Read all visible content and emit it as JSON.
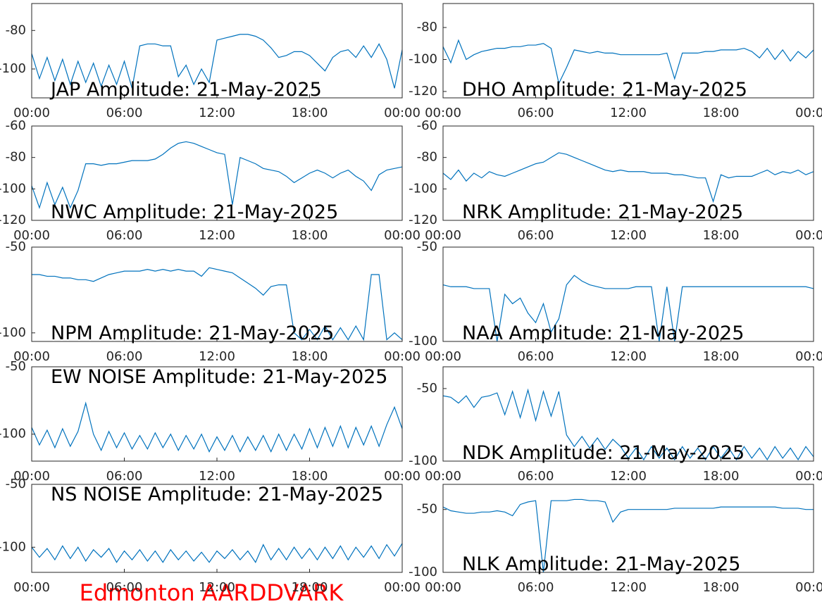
{
  "chart_data": [
    {
      "type": "line",
      "title": "JAP Amplitude: 21-May-2025",
      "color": "#0072bd",
      "x": [
        0,
        0.5,
        1,
        1.5,
        2,
        2.5,
        3,
        3.5,
        4,
        4.5,
        5,
        5.5,
        6,
        6.5,
        7,
        7.5,
        8,
        8.5,
        9,
        9.5,
        10,
        10.5,
        11,
        11.5,
        12,
        12.5,
        13,
        13.5,
        14,
        14.5,
        15,
        15.5,
        16,
        16.5,
        17,
        17.5,
        18,
        18.5,
        19,
        19.5,
        20,
        20.5,
        21,
        21.5,
        22,
        22.5,
        23,
        23.5,
        24
      ],
      "values": [
        -92,
        -105,
        -94,
        -106,
        -95,
        -108,
        -96,
        -107,
        -97,
        -109,
        -98,
        -108,
        -96,
        -110,
        -88,
        -87,
        -87,
        -88,
        -88,
        -104,
        -98,
        -108,
        -100,
        -107,
        -85,
        -84,
        -83,
        -82,
        -82,
        -83,
        -85,
        -89,
        -94,
        -93,
        -91,
        -91,
        -93,
        -97,
        -101,
        -94,
        -91,
        -90,
        -94,
        -88,
        -94,
        -87,
        -95,
        -110,
        -90
      ],
      "xlim": [
        0,
        24
      ],
      "xticks": [
        {
          "value": 0,
          "label": "00:00"
        },
        {
          "value": 6,
          "label": "06:00"
        },
        {
          "value": 12,
          "label": "12:00"
        },
        {
          "value": 18,
          "label": "18:00"
        },
        {
          "value": 24,
          "label": "00:00"
        }
      ],
      "ylim": [
        -115,
        -66
      ],
      "yticks": [
        -100,
        -80
      ]
    },
    {
      "type": "line",
      "title": "DHO Amplitude: 21-May-2025",
      "color": "#0072bd",
      "x": [
        0,
        0.5,
        1,
        1.5,
        2,
        2.5,
        3,
        3.5,
        4,
        4.5,
        5,
        5.5,
        6,
        6.5,
        7,
        7.5,
        8,
        8.5,
        9,
        9.5,
        10,
        10.5,
        11,
        11.5,
        12,
        12.5,
        13,
        13.5,
        14,
        14.5,
        15,
        15.5,
        16,
        16.5,
        17,
        17.5,
        18,
        18.5,
        19,
        19.5,
        20,
        20.5,
        21,
        21.5,
        22,
        22.5,
        23,
        23.5,
        24
      ],
      "values": [
        -92,
        -102,
        -88,
        -100,
        -97,
        -95,
        -94,
        -93,
        -93,
        -92,
        -92,
        -91,
        -91,
        -90,
        -93,
        -115,
        -105,
        -94,
        -95,
        -96,
        -95,
        -96,
        -96,
        -97,
        -97,
        -97,
        -97,
        -97,
        -97,
        -96,
        -112,
        -96,
        -96,
        -96,
        -95,
        -95,
        -94,
        -94,
        -94,
        -93,
        -95,
        -99,
        -93,
        -100,
        -94,
        -101,
        -95,
        -99,
        -94
      ],
      "xlim": [
        0,
        24
      ],
      "xticks": [
        {
          "value": 0,
          "label": "00:00"
        },
        {
          "value": 6,
          "label": "06:00"
        },
        {
          "value": 12,
          "label": "12:00"
        },
        {
          "value": 18,
          "label": "18:00"
        },
        {
          "value": 24,
          "label": "00:00"
        }
      ],
      "ylim": [
        -124,
        -65
      ],
      "yticks": [
        -120,
        -100,
        -80
      ]
    },
    {
      "type": "line",
      "title": "NWC Amplitude: 21-May-2025",
      "color": "#0072bd",
      "x": [
        0,
        0.5,
        1,
        1.5,
        2,
        2.5,
        3,
        3.5,
        4,
        4.5,
        5,
        5.5,
        6,
        6.5,
        7,
        7.5,
        8,
        8.5,
        9,
        9.5,
        10,
        10.5,
        11,
        11.5,
        12,
        12.5,
        13,
        13.5,
        14,
        14.5,
        15,
        15.5,
        16,
        16.5,
        17,
        17.5,
        18,
        18.5,
        19,
        19.5,
        20,
        20.5,
        21,
        21.5,
        22,
        22.5,
        23,
        23.5,
        24
      ],
      "values": [
        -98,
        -112,
        -96,
        -110,
        -99,
        -112,
        -101,
        -84,
        -84,
        -85,
        -84,
        -84,
        -83,
        -82,
        -82,
        -82,
        -81,
        -78,
        -74,
        -71,
        -70,
        -71,
        -73,
        -75,
        -77,
        -78,
        -110,
        -80,
        -82,
        -84,
        -87,
        -88,
        -89,
        -92,
        -96,
        -93,
        -90,
        -88,
        -90,
        -93,
        -90,
        -88,
        -92,
        -95,
        -101,
        -91,
        -88,
        -87,
        -86
      ],
      "xlim": [
        0,
        24
      ],
      "xticks": [
        {
          "value": 0,
          "label": "00:00"
        },
        {
          "value": 6,
          "label": "06:00"
        },
        {
          "value": 12,
          "label": "12:00"
        },
        {
          "value": 18,
          "label": "18:00"
        },
        {
          "value": 24,
          "label": "00:00"
        }
      ],
      "ylim": [
        -120,
        -60
      ],
      "yticks": [
        -120,
        -100,
        -80,
        -60
      ]
    },
    {
      "type": "line",
      "title": "NRK Amplitude: 21-May-2025",
      "color": "#0072bd",
      "x": [
        0,
        0.5,
        1,
        1.5,
        2,
        2.5,
        3,
        3.5,
        4,
        4.5,
        5,
        5.5,
        6,
        6.5,
        7,
        7.5,
        8,
        8.5,
        9,
        9.5,
        10,
        10.5,
        11,
        11.5,
        12,
        12.5,
        13,
        13.5,
        14,
        14.5,
        15,
        15.5,
        16,
        16.5,
        17,
        17.5,
        18,
        18.5,
        19,
        19.5,
        20,
        20.5,
        21,
        21.5,
        22,
        22.5,
        23,
        23.5,
        24
      ],
      "values": [
        -90,
        -94,
        -88,
        -95,
        -90,
        -93,
        -89,
        -91,
        -92,
        -90,
        -88,
        -86,
        -84,
        -83,
        -80,
        -77,
        -78,
        -80,
        -82,
        -84,
        -86,
        -88,
        -89,
        -88,
        -89,
        -89,
        -89,
        -90,
        -90,
        -90,
        -91,
        -91,
        -92,
        -93,
        -93,
        -108,
        -91,
        -93,
        -92,
        -92,
        -92,
        -90,
        -88,
        -91,
        -89,
        -90,
        -88,
        -91,
        -89
      ],
      "xlim": [
        0,
        24
      ],
      "xticks": [
        {
          "value": 0,
          "label": "00:00"
        },
        {
          "value": 6,
          "label": "06:00"
        },
        {
          "value": 12,
          "label": "12:00"
        },
        {
          "value": 18,
          "label": "18:00"
        },
        {
          "value": 24,
          "label": "00:00"
        }
      ],
      "ylim": [
        -120,
        -60
      ],
      "yticks": [
        -120,
        -100,
        -80,
        -60
      ]
    },
    {
      "type": "line",
      "title": "NPM Amplitude: 21-May-2025",
      "color": "#0072bd",
      "x": [
        0,
        0.5,
        1,
        1.5,
        2,
        2.5,
        3,
        3.5,
        4,
        4.5,
        5,
        5.5,
        6,
        6.5,
        7,
        7.5,
        8,
        8.5,
        9,
        9.5,
        10,
        10.5,
        11,
        11.5,
        12,
        12.5,
        13,
        13.5,
        14,
        14.5,
        15,
        15.5,
        16,
        16.5,
        17,
        17.5,
        18,
        18.5,
        19,
        19.5,
        20,
        20.5,
        21,
        21.5,
        22,
        22.5,
        23,
        23.5,
        24
      ],
      "values": [
        -66,
        -66,
        -67,
        -67,
        -68,
        -68,
        -69,
        -69,
        -70,
        -68,
        -66,
        -65,
        -64,
        -64,
        -64,
        -63,
        -64,
        -63,
        -64,
        -63,
        -64,
        -64,
        -67,
        -62,
        -63,
        -64,
        -65,
        -68,
        -71,
        -74,
        -78,
        -73,
        -72,
        -72,
        -100,
        -104,
        -98,
        -104,
        -96,
        -104,
        -97,
        -104,
        -96,
        -104,
        -66,
        -66,
        -104,
        -100,
        -104
      ],
      "xlim": [
        0,
        24
      ],
      "xticks": [
        {
          "value": 0,
          "label": "00:00"
        },
        {
          "value": 6,
          "label": "06:00"
        },
        {
          "value": 12,
          "label": "12:00"
        },
        {
          "value": 18,
          "label": "18:00"
        },
        {
          "value": 24,
          "label": "00:00"
        }
      ],
      "ylim": [
        -105,
        -50
      ],
      "yticks": [
        -100,
        -50
      ]
    },
    {
      "type": "line",
      "title": "NAA Amplitude: 21-May-2025",
      "color": "#0072bd",
      "x": [
        0,
        0.5,
        1,
        1.5,
        2,
        2.5,
        3,
        3.5,
        4,
        4.5,
        5,
        5.5,
        6,
        6.5,
        7,
        7.5,
        8,
        8.5,
        9,
        9.5,
        10,
        10.5,
        11,
        11.5,
        12,
        12.5,
        13,
        13.5,
        14,
        14.5,
        15,
        15.5,
        16,
        16.5,
        17,
        17.5,
        18,
        18.5,
        19,
        19.5,
        20,
        20.5,
        21,
        21.5,
        22,
        22.5,
        23,
        23.5,
        24
      ],
      "values": [
        -70,
        -71,
        -71,
        -71,
        -72,
        -72,
        -72,
        -100,
        -75,
        -80,
        -77,
        -85,
        -90,
        -80,
        -95,
        -88,
        -70,
        -65,
        -68,
        -70,
        -71,
        -72,
        -72,
        -72,
        -72,
        -71,
        -71,
        -71,
        -100,
        -71,
        -100,
        -71,
        -71,
        -71,
        -71,
        -71,
        -71,
        -71,
        -71,
        -71,
        -71,
        -71,
        -71,
        -71,
        -71,
        -71,
        -71,
        -71,
        -72
      ],
      "xlim": [
        0,
        24
      ],
      "xticks": [
        {
          "value": 0,
          "label": "00:00"
        },
        {
          "value": 6,
          "label": "06:00"
        },
        {
          "value": 12,
          "label": "12:00"
        },
        {
          "value": 18,
          "label": "18:00"
        },
        {
          "value": 24,
          "label": "00:00"
        }
      ],
      "ylim": [
        -100,
        -50
      ],
      "yticks": [
        -100,
        -50
      ]
    },
    {
      "type": "line",
      "title": "EW NOISE Amplitude: 21-May-2025",
      "color": "#0072bd",
      "x": [
        0,
        0.5,
        1,
        1.5,
        2,
        2.5,
        3,
        3.5,
        4,
        4.5,
        5,
        5.5,
        6,
        6.5,
        7,
        7.5,
        8,
        8.5,
        9,
        9.5,
        10,
        10.5,
        11,
        11.5,
        12,
        12.5,
        13,
        13.5,
        14,
        14.5,
        15,
        15.5,
        16,
        16.5,
        17,
        17.5,
        18,
        18.5,
        19,
        19.5,
        20,
        20.5,
        21,
        21.5,
        22,
        22.5,
        23,
        23.5,
        24
      ],
      "values": [
        -95,
        -108,
        -97,
        -110,
        -96,
        -109,
        -98,
        -77,
        -100,
        -112,
        -98,
        -110,
        -99,
        -111,
        -101,
        -111,
        -99,
        -110,
        -100,
        -112,
        -101,
        -111,
        -100,
        -113,
        -102,
        -112,
        -101,
        -113,
        -102,
        -112,
        -101,
        -113,
        -100,
        -112,
        -100,
        -111,
        -96,
        -110,
        -95,
        -109,
        -94,
        -110,
        -95,
        -108,
        -94,
        -109,
        -93,
        -80,
        -96
      ],
      "xlim": [
        0,
        24
      ],
      "xticks": [
        {
          "value": 0,
          "label": "00:00"
        },
        {
          "value": 6,
          "label": "06:00"
        },
        {
          "value": 12,
          "label": "12:00"
        },
        {
          "value": 18,
          "label": "18:00"
        },
        {
          "value": 24,
          "label": "00:00"
        }
      ],
      "ylim": [
        -120,
        -50
      ],
      "yticks": [
        -100,
        -50
      ]
    },
    {
      "type": "line",
      "title": "NDK Amplitude: 21-May-2025",
      "color": "#0072bd",
      "x": [
        0,
        0.5,
        1,
        1.5,
        2,
        2.5,
        3,
        3.5,
        4,
        4.5,
        5,
        5.5,
        6,
        6.5,
        7,
        7.5,
        8,
        8.5,
        9,
        9.5,
        10,
        10.5,
        11,
        11.5,
        12,
        12.5,
        13,
        13.5,
        14,
        14.5,
        15,
        15.5,
        16,
        16.5,
        17,
        17.5,
        18,
        18.5,
        19,
        19.5,
        20,
        20.5,
        21,
        21.5,
        22,
        22.5,
        23,
        23.5,
        24
      ],
      "values": [
        -55,
        -56,
        -60,
        -55,
        -63,
        -56,
        -55,
        -53,
        -68,
        -52,
        -70,
        -51,
        -72,
        -52,
        -69,
        -52,
        -82,
        -90,
        -83,
        -91,
        -84,
        -92,
        -85,
        -90,
        -98,
        -91,
        -99,
        -90,
        -98,
        -91,
        -99,
        -90,
        -98,
        -91,
        -99,
        -90,
        -98,
        -91,
        -99,
        -90,
        -98,
        -91,
        -99,
        -90,
        -98,
        -91,
        -99,
        -90,
        -97
      ],
      "xlim": [
        0,
        24
      ],
      "xticks": [
        {
          "value": 0,
          "label": "00:00"
        },
        {
          "value": 6,
          "label": "06:00"
        },
        {
          "value": 12,
          "label": "12:00"
        },
        {
          "value": 18,
          "label": "18:00"
        },
        {
          "value": 24,
          "label": "00:00"
        }
      ],
      "ylim": [
        -100,
        -35
      ],
      "yticks": [
        -100,
        -50
      ]
    },
    {
      "type": "line",
      "title": "NS NOISE Amplitude: 21-May-2025",
      "color": "#0072bd",
      "x": [
        0,
        0.5,
        1,
        1.5,
        2,
        2.5,
        3,
        3.5,
        4,
        4.5,
        5,
        5.5,
        6,
        6.5,
        7,
        7.5,
        8,
        8.5,
        9,
        9.5,
        10,
        10.5,
        11,
        11.5,
        12,
        12.5,
        13,
        13.5,
        14,
        14.5,
        15,
        15.5,
        16,
        16.5,
        17,
        17.5,
        18,
        18.5,
        19,
        19.5,
        20,
        20.5,
        21,
        21.5,
        22,
        22.5,
        23,
        23.5,
        24
      ],
      "values": [
        -100,
        -108,
        -101,
        -110,
        -99,
        -109,
        -100,
        -111,
        -102,
        -108,
        -101,
        -112,
        -103,
        -110,
        -102,
        -111,
        -103,
        -112,
        -102,
        -110,
        -103,
        -111,
        -104,
        -112,
        -103,
        -109,
        -102,
        -110,
        -103,
        -112,
        -98,
        -110,
        -101,
        -110,
        -100,
        -109,
        -101,
        -110,
        -100,
        -109,
        -99,
        -110,
        -100,
        -108,
        -99,
        -109,
        -98,
        -107,
        -97
      ],
      "xlim": [
        0,
        24
      ],
      "xticks": [
        {
          "value": 0,
          "label": "00:00"
        },
        {
          "value": 6,
          "label": "06:00"
        },
        {
          "value": 12,
          "label": "12:00"
        },
        {
          "value": 18,
          "label": "18:00"
        },
        {
          "value": 24,
          "label": "00:00"
        }
      ],
      "ylim": [
        -120,
        -50
      ],
      "yticks": [
        -100,
        -50
      ]
    },
    {
      "type": "line",
      "title": "NLK Amplitude: 21-May-2025",
      "color": "#0072bd",
      "x": [
        0,
        0.5,
        1,
        1.5,
        2,
        2.5,
        3,
        3.5,
        4,
        4.5,
        5,
        5.5,
        6,
        6.5,
        7,
        7.5,
        8,
        8.5,
        9,
        9.5,
        10,
        10.5,
        11,
        11.5,
        12,
        12.5,
        13,
        13.5,
        14,
        14.5,
        15,
        15.5,
        16,
        16.5,
        17,
        17.5,
        18,
        18.5,
        19,
        19.5,
        20,
        20.5,
        21,
        21.5,
        22,
        22.5,
        23,
        23.5,
        24
      ],
      "values": [
        -48,
        -51,
        -52,
        -53,
        -53,
        -52,
        -52,
        -51,
        -52,
        -55,
        -46,
        -44,
        -43,
        -100,
        -43,
        -43,
        -43,
        -42,
        -42,
        -43,
        -43,
        -44,
        -60,
        -52,
        -50,
        -50,
        -50,
        -50,
        -50,
        -50,
        -49,
        -49,
        -49,
        -49,
        -49,
        -49,
        -48,
        -48,
        -48,
        -48,
        -48,
        -48,
        -48,
        -48,
        -49,
        -49,
        -49,
        -50,
        -50
      ],
      "xlim": [
        0,
        24
      ],
      "xticks": [
        {
          "value": 0,
          "label": "00:00"
        },
        {
          "value": 6,
          "label": "06:00"
        },
        {
          "value": 12,
          "label": "12:00"
        },
        {
          "value": 18,
          "label": "18:00"
        },
        {
          "value": 24,
          "label": "00:00"
        }
      ],
      "ylim": [
        -100,
        -30
      ],
      "yticks": [
        -100,
        -50
      ]
    }
  ],
  "footer": "Edmonton AARDDVARK"
}
